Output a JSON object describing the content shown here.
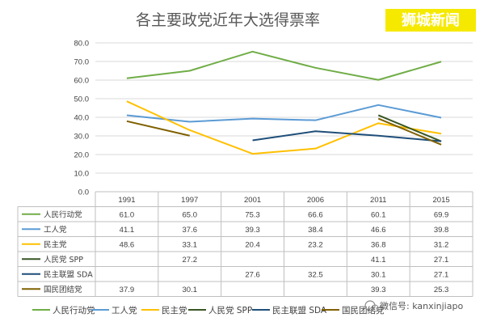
{
  "title": "各主要政党近年大选得票率",
  "watermark": {
    "text": "狮城新闻",
    "bg_color": "#f6e900",
    "text_color": "#ffffff"
  },
  "wechat_mark": {
    "text": "微信号: kanxinjiapo"
  },
  "chart_data": {
    "type": "line",
    "title": "各主要政党近年大选得票率",
    "categories": [
      "1991",
      "1997",
      "2001",
      "2006",
      "2011",
      "2015"
    ],
    "ylim": [
      0,
      80
    ],
    "yticks": [
      "0.0",
      "10.0",
      "20.0",
      "30.0",
      "40.0",
      "50.0",
      "60.0",
      "70.0",
      "80.0"
    ],
    "grid": true,
    "legend_position": "bottom",
    "data_table": true,
    "series": [
      {
        "name": "人民行动党",
        "color": "#70ad47",
        "values": [
          61.0,
          65.0,
          75.3,
          66.6,
          60.1,
          69.9
        ],
        "labels": [
          "61.0",
          "65.0",
          "75.3",
          "66.6",
          "60.1",
          "69.9"
        ]
      },
      {
        "name": "工人党",
        "color": "#5b9bd5",
        "values": [
          41.1,
          37.6,
          39.3,
          38.4,
          46.6,
          39.8
        ],
        "labels": [
          "41.1",
          "37.6",
          "39.3",
          "38.4",
          "46.6",
          "39.8"
        ]
      },
      {
        "name": "民主党",
        "color": "#ffc000",
        "values": [
          48.6,
          33.1,
          20.4,
          23.2,
          36.8,
          31.2
        ],
        "labels": [
          "48.6",
          "33.1",
          "20.4",
          "23.2",
          "36.8",
          "31.2"
        ]
      },
      {
        "name": "人民党 SPP",
        "color": "#375623",
        "values": [
          null,
          27.2,
          null,
          null,
          41.1,
          27.1
        ],
        "labels": [
          "",
          "27.2",
          "",
          "",
          "41.1",
          "27.1"
        ]
      },
      {
        "name": "民主联盟 SDA",
        "color": "#1f4e79",
        "values": [
          null,
          null,
          27.6,
          32.5,
          30.1,
          27.1
        ],
        "labels": [
          "",
          "",
          "27.6",
          "32.5",
          "30.1",
          "27.1"
        ]
      },
      {
        "name": "国民团结党",
        "color": "#7f6000",
        "values": [
          37.9,
          30.1,
          null,
          null,
          39.3,
          25.3
        ],
        "labels": [
          "37.9",
          "30.1",
          "",
          "",
          "39.3",
          "25.3"
        ]
      }
    ]
  }
}
